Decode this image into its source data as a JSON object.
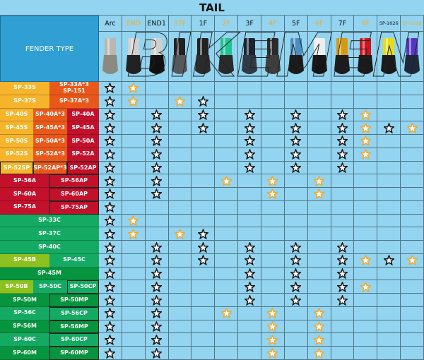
{
  "title": "TAIL",
  "fender_header": "FENDER TYPE",
  "watermark": "BIKEMEN",
  "colors": {
    "Y": "#f6b42c",
    "O": "#e9581b",
    "R": "#c3112b",
    "G": "#14aa63",
    "D": "#07943f",
    "L": "#8dc11f",
    "label_orange": "#f4a82a",
    "star_black": "#111111",
    "star_orange": "#f5a623"
  },
  "columns": [
    {
      "label": "Arc",
      "highlight": false,
      "top": "#b8b8b0",
      "base": "#8a8a80"
    },
    {
      "label": "END",
      "highlight": true,
      "top": "#d0d0d0",
      "base": "#222"
    },
    {
      "label": "END1",
      "highlight": false,
      "top": "#cfcfcf",
      "base": "#111"
    },
    {
      "label": "37F",
      "highlight": true,
      "top": "#222",
      "base": "#55595c"
    },
    {
      "label": "1F",
      "highlight": false,
      "top": "#222",
      "base": "#2b2b2b"
    },
    {
      "label": "2F",
      "highlight": true,
      "top": "#1ec396",
      "base": "#2a2a2a"
    },
    {
      "label": "3F",
      "highlight": false,
      "top": "#1a2430",
      "base": "#2f3a44"
    },
    {
      "label": "4F",
      "highlight": true,
      "top": "#2b2b2b",
      "base": "#3d3d3d"
    },
    {
      "label": "5F",
      "highlight": false,
      "top": "#4a8fc0",
      "base": "#1b1b1b"
    },
    {
      "label": "6F",
      "highlight": true,
      "top": "#eeeeee",
      "base": "#151515"
    },
    {
      "label": "7F",
      "highlight": false,
      "top": "#d59a12",
      "base": "#1c1c1c"
    },
    {
      "label": "8F",
      "highlight": true,
      "top": "#d0141f",
      "base": "#1a1a1a"
    },
    {
      "label": "SP-1026",
      "highlight": false,
      "top": "#e6dc18",
      "base": "#1a1a1a"
    },
    {
      "label": "SP-1028",
      "highlight": true,
      "top": "#5533c4",
      "base": "#1e2a3a"
    }
  ],
  "rows": [
    {
      "cells": [
        {
          "label": "SP-33S",
          "c": "Y"
        },
        {
          "label": "SP-33A*3\nSP-151",
          "c": "O"
        }
      ],
      "stars": "bo............"
    },
    {
      "cells": [
        {
          "label": "SP-37S",
          "c": "Y"
        },
        {
          "label": "SP-37A*3",
          "c": "O"
        }
      ],
      "stars": "bo.ob........."
    },
    {
      "cells": [
        {
          "label": "SP-40S",
          "c": "Y"
        },
        {
          "label": "SP-40A*3",
          "c": "O"
        },
        {
          "label": "SP-40A",
          "c": "R"
        }
      ],
      "stars": "b.b.b.b.b.bo.."
    },
    {
      "cells": [
        {
          "label": "SP-45S",
          "c": "Y"
        },
        {
          "label": "SP-45A*3",
          "c": "O"
        },
        {
          "label": "SP-45A",
          "c": "R"
        }
      ],
      "stars": "b.b.b.b.b.bobo"
    },
    {
      "cells": [
        {
          "label": "SP-50S",
          "c": "Y"
        },
        {
          "label": "SP-50A*3",
          "c": "O"
        },
        {
          "label": "SP-50A",
          "c": "R"
        }
      ],
      "stars": "b.b...b.b.bo.."
    },
    {
      "cells": [
        {
          "label": "SP-52S",
          "c": "Y"
        },
        {
          "label": "SP-52A*3",
          "c": "O"
        },
        {
          "label": "SP-52A",
          "c": "R"
        }
      ],
      "stars": "b.b...b.b.bo.."
    },
    {
      "cells": [
        {
          "label": "SP-52SP",
          "c": "Y",
          "b": 1
        },
        {
          "label": "SP-52AP*3",
          "c": "O",
          "b": 1
        },
        {
          "label": "SP-52AP",
          "c": "R",
          "b": 1
        }
      ],
      "stars": "b.b...b.b.b..."
    },
    {
      "cells": [
        {
          "label": "SP-56A",
          "c": "R"
        },
        {
          "label": "SP-56AP",
          "c": "R",
          "b": 1
        }
      ],
      "stars": "b.b..o.o.o...."
    },
    {
      "cells": [
        {
          "label": "SP-60A",
          "c": "R"
        },
        {
          "label": "SP-60AP",
          "c": "R",
          "b": 1
        }
      ],
      "stars": "b.b....o.o...."
    },
    {
      "cells": [
        {
          "label": "SP-75A",
          "c": "R"
        },
        {
          "label": "SP-75AP",
          "c": "R",
          "b": 1
        }
      ],
      "stars": "b............."
    },
    {
      "cells": [
        {
          "label": "SP-33C",
          "c": "G"
        }
      ],
      "stars": "bo............"
    },
    {
      "cells": [
        {
          "label": "SP-37C",
          "c": "G"
        }
      ],
      "stars": "bo.ob........."
    },
    {
      "cells": [
        {
          "label": "SP-40C",
          "c": "G"
        }
      ],
      "stars": "b.b.b.b.b.b..."
    },
    {
      "cells": [
        {
          "label": "SP-45B",
          "c": "L"
        },
        {
          "label": "SP-45C",
          "c": "G"
        }
      ],
      "stars": "b.b.b.b.b.bobo"
    },
    {
      "cells": [
        {
          "label": "SP-45M",
          "c": "D"
        }
      ],
      "stars": "b.b...b.b.b..."
    },
    {
      "cells": [
        {
          "label": "SP-50B",
          "c": "L"
        },
        {
          "label": "SP-50C",
          "c": "G"
        },
        {
          "label": "SP-50CP",
          "c": "G",
          "b": 1
        }
      ],
      "stars": "b.b...b.b.bo.."
    },
    {
      "cells": [
        {
          "label": "SP-50M",
          "c": "D"
        },
        {
          "label": "SP-50MP",
          "c": "D",
          "b": 1
        }
      ],
      "stars": "b.b...b.b.b..."
    },
    {
      "cells": [
        {
          "label": "SP-56C",
          "c": "G"
        },
        {
          "label": "SP-56CP",
          "c": "G",
          "b": 1
        }
      ],
      "stars": "b.b..o.o.o...."
    },
    {
      "cells": [
        {
          "label": "SP-56M",
          "c": "D"
        },
        {
          "label": "SP-56MP",
          "c": "D",
          "b": 1
        }
      ],
      "stars": "b.b....o.o...."
    },
    {
      "cells": [
        {
          "label": "SP-60C",
          "c": "G"
        },
        {
          "label": "SP-60CP",
          "c": "G",
          "b": 1
        }
      ],
      "stars": "b.b....o.o...."
    },
    {
      "cells": [
        {
          "label": "SP-60M",
          "c": "D"
        },
        {
          "label": "SP-60MP",
          "c": "D",
          "b": 1
        }
      ],
      "stars": "b.b....o.o...."
    }
  ]
}
